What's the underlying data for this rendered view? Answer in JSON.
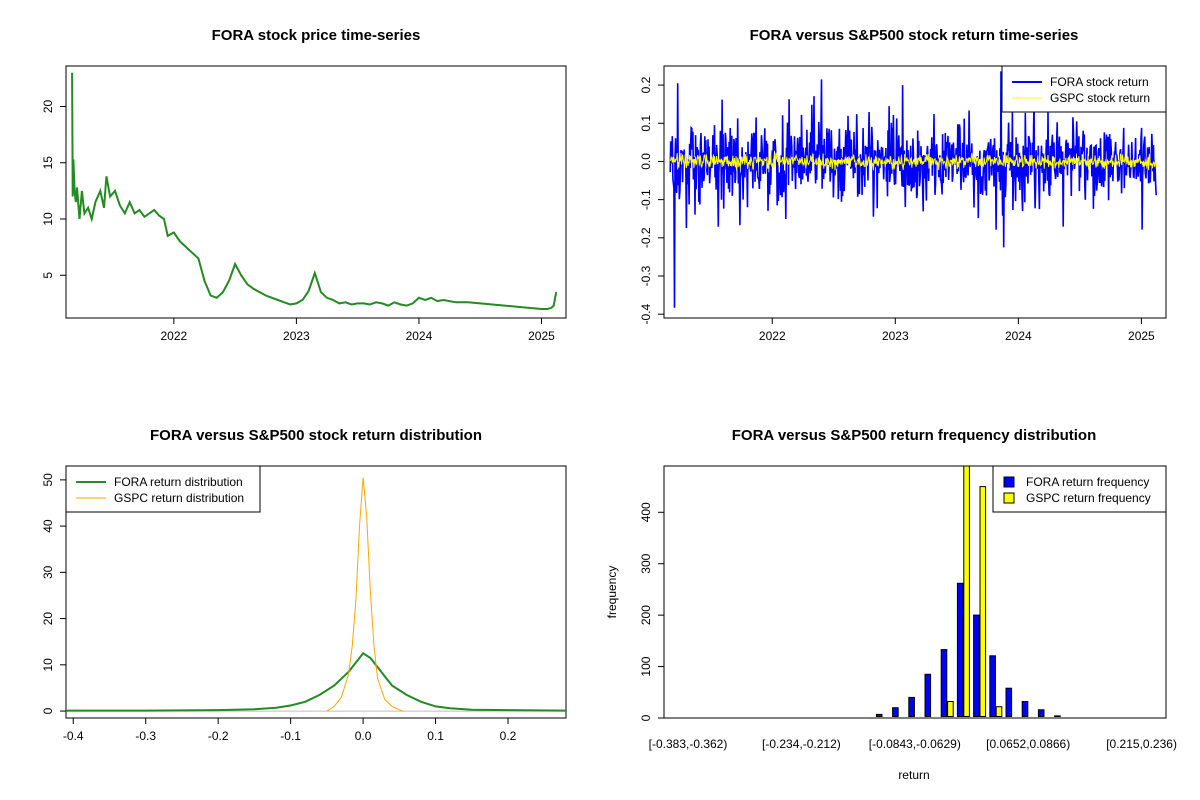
{
  "chart_data": [
    {
      "id": "price",
      "type": "line",
      "title": "FORA stock price time-series",
      "x_ticks": [
        "2022",
        "2023",
        "2024",
        "2025"
      ],
      "y_ticks": [
        "5",
        "10",
        "15",
        "20"
      ],
      "xlim": [
        2021.12,
        2025.2
      ],
      "ylim": [
        1.2,
        23.6
      ],
      "color": "#228B22",
      "series": [
        {
          "x": [
            2021.17,
            2021.175,
            2021.18,
            2021.19,
            2021.2,
            2021.21,
            2021.23,
            2021.25,
            2021.27,
            2021.3,
            2021.33,
            2021.36,
            2021.4,
            2021.43,
            2021.45,
            2021.48,
            2021.52,
            2021.56,
            2021.6,
            2021.64,
            2021.68,
            2021.72,
            2021.76,
            2021.8,
            2021.84,
            2021.88,
            2021.92,
            2021.95,
            2022.0,
            2022.05,
            2022.1,
            2022.15,
            2022.2,
            2022.25,
            2022.3,
            2022.35,
            2022.4,
            2022.45,
            2022.5,
            2022.55,
            2022.6,
            2022.65,
            2022.7,
            2022.75,
            2022.8,
            2022.85,
            2022.9,
            2022.95,
            2023.0,
            2023.05,
            2023.1,
            2023.15,
            2023.2,
            2023.25,
            2023.3,
            2023.35,
            2023.4,
            2023.45,
            2023.5,
            2023.55,
            2023.6,
            2023.65,
            2023.7,
            2023.75,
            2023.8,
            2023.85,
            2023.9,
            2023.95,
            2024.0,
            2024.05,
            2024.1,
            2024.15,
            2024.2,
            2024.3,
            2024.4,
            2024.5,
            2024.6,
            2024.7,
            2024.8,
            2024.9,
            2025.0,
            2025.05,
            2025.08,
            2025.1,
            2025.12
          ],
          "y": [
            23.0,
            12.0,
            15.3,
            12.5,
            11.5,
            12.8,
            10.0,
            12.5,
            10.5,
            11.0,
            10.0,
            11.5,
            12.5,
            11.0,
            13.8,
            12.0,
            12.5,
            11.2,
            10.5,
            11.5,
            10.5,
            10.8,
            10.2,
            10.5,
            10.8,
            10.3,
            10.0,
            8.5,
            8.8,
            8.0,
            7.5,
            7.0,
            6.5,
            4.5,
            3.2,
            3.0,
            3.5,
            4.5,
            6.0,
            5.0,
            4.2,
            3.8,
            3.5,
            3.2,
            3.0,
            2.8,
            2.6,
            2.4,
            2.5,
            2.8,
            3.6,
            5.2,
            3.5,
            3.0,
            2.8,
            2.5,
            2.6,
            2.4,
            2.5,
            2.5,
            2.4,
            2.6,
            2.5,
            2.3,
            2.6,
            2.4,
            2.3,
            2.5,
            3.0,
            2.8,
            3.0,
            2.7,
            2.8,
            2.6,
            2.6,
            2.5,
            2.4,
            2.3,
            2.2,
            2.1,
            2.0,
            2.0,
            2.1,
            2.3,
            3.5
          ]
        }
      ]
    },
    {
      "id": "returns",
      "type": "line",
      "title": "FORA versus S&P500 stock return time-series",
      "x_ticks": [
        "2022",
        "2023",
        "2024",
        "2025"
      ],
      "y_ticks": [
        "-0.4",
        "-0.3",
        "-0.2",
        "-0.1",
        "0.0",
        "0.1",
        "0.2"
      ],
      "xlim": [
        2021.12,
        2025.2
      ],
      "ylim": [
        -0.41,
        0.25
      ],
      "legend": {
        "position": "top-right",
        "entries": [
          {
            "label": "FORA stock return",
            "color": "#0000FF"
          },
          {
            "label": "GSPC stock return",
            "color": "#FFFF00"
          }
        ]
      },
      "series": [
        {
          "name": "FORA stock return",
          "color": "#0000FF",
          "min": -0.383,
          "max": 0.236,
          "typical_amplitude": 0.06
        },
        {
          "name": "GSPC stock return",
          "color": "#FFFF00",
          "min": -0.043,
          "max": 0.055,
          "typical_amplitude": 0.015
        }
      ]
    },
    {
      "id": "density",
      "type": "line",
      "title": "FORA versus S&P500 stock return distribution",
      "x_ticks": [
        "-0.4",
        "-0.3",
        "-0.2",
        "-0.1",
        "0.0",
        "0.1",
        "0.2"
      ],
      "y_ticks": [
        "0",
        "10",
        "20",
        "30",
        "40",
        "50"
      ],
      "xlim": [
        -0.41,
        0.28
      ],
      "ylim": [
        -1.5,
        53
      ],
      "legend": {
        "position": "top-left",
        "entries": [
          {
            "label": "FORA return distribution",
            "color": "#228B22"
          },
          {
            "label": "GSPC return distribution",
            "color": "#FFA500"
          }
        ]
      },
      "series": [
        {
          "name": "FORA return distribution",
          "color": "#228B22",
          "x": [
            -0.41,
            -0.3,
            -0.2,
            -0.15,
            -0.12,
            -0.1,
            -0.08,
            -0.06,
            -0.04,
            -0.03,
            -0.02,
            -0.01,
            0.0,
            0.01,
            0.02,
            0.03,
            0.04,
            0.06,
            0.08,
            0.1,
            0.12,
            0.15,
            0.2,
            0.28
          ],
          "y": [
            0.1,
            0.1,
            0.2,
            0.4,
            0.7,
            1.2,
            2.0,
            3.5,
            5.5,
            7.0,
            8.5,
            10.5,
            12.5,
            11.5,
            9.5,
            7.5,
            5.5,
            3.5,
            2.0,
            1.0,
            0.6,
            0.3,
            0.2,
            0.1
          ]
        },
        {
          "name": "GSPC return distribution",
          "color": "#FFA500",
          "x": [
            -0.05,
            -0.04,
            -0.03,
            -0.02,
            -0.015,
            -0.01,
            -0.005,
            0.0,
            0.005,
            0.01,
            0.015,
            0.02,
            0.03,
            0.04,
            0.05,
            0.055
          ],
          "y": [
            0.0,
            1.0,
            3.0,
            8.0,
            14.0,
            24.0,
            40.0,
            50.5,
            42.0,
            26.0,
            14.0,
            7.0,
            2.5,
            1.0,
            0.3,
            0.0
          ]
        }
      ]
    },
    {
      "id": "histogram",
      "type": "bar",
      "title": "FORA versus S&P500 return frequency distribution",
      "xlabel": "return",
      "ylabel": "frequency",
      "x_tick_labels": [
        "[-0.383,-0.362)",
        "[-0.234,-0.212)",
        "[-0.0843,-0.0629)",
        "[0.0652,0.0866)",
        "[0.215,0.236)"
      ],
      "y_ticks": [
        "0",
        "100",
        "200",
        "300",
        "400"
      ],
      "ylim": [
        0,
        490
      ],
      "legend": {
        "position": "top-right",
        "entries": [
          {
            "label": "FORA return frequency",
            "color": "#0000FF"
          },
          {
            "label": "GSPC return frequency",
            "color": "#FFFF00"
          }
        ]
      },
      "series": [
        {
          "name": "FORA return frequency",
          "color": "#0000FF",
          "values": [
            2,
            1,
            1,
            1,
            1,
            1,
            2,
            1,
            1,
            1,
            3,
            3,
            7,
            20,
            40,
            85,
            133,
            262,
            200,
            121,
            58,
            32,
            16,
            4,
            3,
            3,
            2,
            2,
            2,
            1
          ]
        },
        {
          "name": "GSPC return frequency",
          "color": "#FFFF00",
          "values": [
            0,
            0,
            0,
            0,
            0,
            0,
            0,
            0,
            0,
            0,
            0,
            0,
            0,
            0,
            0,
            0,
            32,
            500,
            450,
            22,
            0,
            0,
            0,
            0,
            0,
            0,
            0,
            0,
            0,
            0
          ]
        }
      ]
    }
  ]
}
